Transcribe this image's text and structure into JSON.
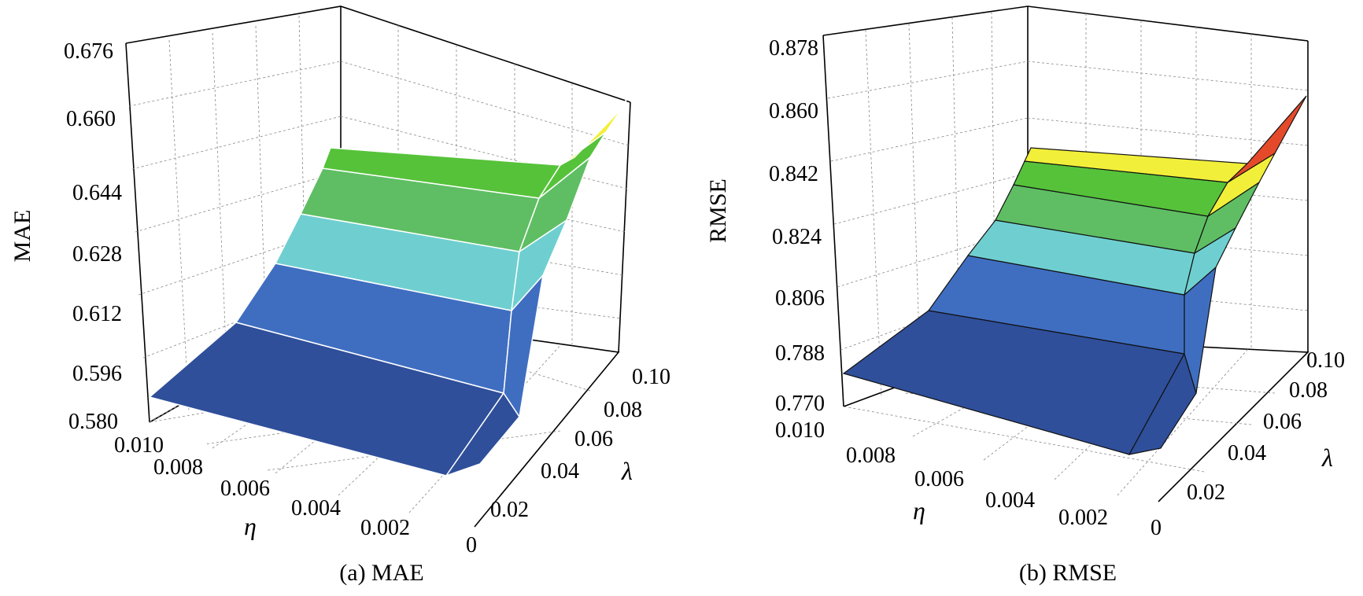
{
  "chart_data": [
    {
      "type": "surface",
      "caption": "(a) MAE",
      "zlabel": "MAE",
      "xlabel": "η",
      "ylabel": "λ",
      "zlim": [
        0.58,
        0.676
      ],
      "xlim": [
        0,
        0.01
      ],
      "ylim": [
        0,
        0.1
      ],
      "z_ticks": [
        "0.580",
        "0.596",
        "0.612",
        "0.628",
        "0.644",
        "0.660",
        "0.676"
      ],
      "x_ticks": [
        "0.010",
        "0.008",
        "0.006",
        "0.004",
        "0.002"
      ],
      "y_ticks": [
        "0",
        "0.02",
        "0.04",
        "0.06",
        "0.08",
        "0.10"
      ],
      "surface_description": "MAE is minimal and nearly flat at about 0.582 when η is near 0.01, increases as η decreases, reaching about 0.645 at η=0.0005; for the smallest η it rises steeply with λ to about 0.672 at λ=0.1.",
      "samples": [
        {
          "eta": 0.01,
          "lambda": 0.0,
          "value": 0.5825
        },
        {
          "eta": 0.0055,
          "lambda": 0.0,
          "value": 0.6
        },
        {
          "eta": 0.002,
          "lambda": 0.0,
          "value": 0.625
        },
        {
          "eta": 0.0005,
          "lambda": 0.0,
          "value": 0.645
        },
        {
          "eta": 0.0005,
          "lambda": 0.07,
          "value": 0.652
        },
        {
          "eta": 0.0005,
          "lambda": 0.1,
          "value": 0.672
        }
      ],
      "grid": true
    },
    {
      "type": "surface",
      "caption": "(b) RMSE",
      "zlabel": "RMSE",
      "xlabel": "η",
      "ylabel": "λ",
      "zlim": [
        0.77,
        0.878
      ],
      "xlim": [
        0,
        0.01
      ],
      "ylim": [
        0,
        0.1
      ],
      "z_ticks": [
        "0.770",
        "0.788",
        "0.806",
        "0.824",
        "0.842",
        "0.860",
        "0.878"
      ],
      "x_ticks": [
        "0.010",
        "0.008",
        "0.006",
        "0.004",
        "0.002",
        "0"
      ],
      "y_ticks": [
        "0.02",
        "0.04",
        "0.06",
        "0.08",
        "0.10"
      ],
      "surface_description": "RMSE is minimal (about 0.778) near η=0.01, increases as η decreases to about 0.848 at η=0.0005, and rises steeply with λ to about 0.874 at λ=0.1 for the smallest η.",
      "samples": [
        {
          "eta": 0.01,
          "lambda": 0.0,
          "value": 0.778
        },
        {
          "eta": 0.0055,
          "lambda": 0.0,
          "value": 0.79
        },
        {
          "eta": 0.002,
          "lambda": 0.0,
          "value": 0.82
        },
        {
          "eta": 0.0005,
          "lambda": 0.0,
          "value": 0.848
        },
        {
          "eta": 0.0005,
          "lambda": 0.07,
          "value": 0.856
        },
        {
          "eta": 0.0005,
          "lambda": 0.1,
          "value": 0.874
        }
      ],
      "grid": true
    }
  ],
  "colors": {
    "band_low": "#2f4f9a",
    "band_2": "#3f6ec1",
    "band_3": "#6fcfd0",
    "band_4": "#5fbe63",
    "band_5": "#56c23a",
    "band_high": "#f2ef3a",
    "peak": "#e44a2a"
  }
}
